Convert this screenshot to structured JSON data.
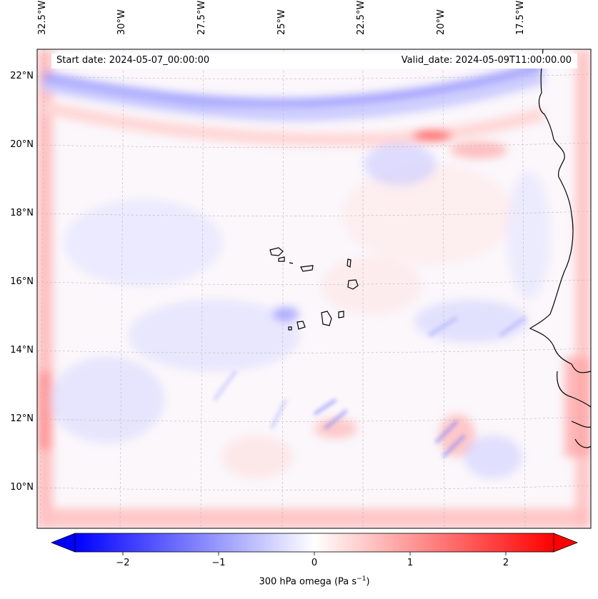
{
  "map": {
    "header_left": "Start date: 2024-05-07_00:00:00",
    "header_right": "Valid_date: 2024-05-09T11:00:00.00",
    "lon_labels": [
      "32.5°W",
      "30°W",
      "27.5°W",
      "25°W",
      "22.5°W",
      "20°W",
      "17.5°W"
    ],
    "lat_labels": [
      "22°N",
      "20°N",
      "18°N",
      "16°N",
      "14°N",
      "12°N",
      "10°N"
    ],
    "field": "300 hPa omega",
    "colors": {
      "negative": "#0000ff",
      "zero": "#ffffff",
      "positive": "#ff0000",
      "coast": "#000000"
    }
  },
  "colorbar": {
    "label": "300 hPa omega (Pa s$^{-1}$)",
    "label_base": "300 hPa omega (Pa s",
    "label_exp": "−1",
    "label_end": ")",
    "ticks": [
      "−2",
      "−1",
      "0",
      "1",
      "2"
    ],
    "range": [
      -2.7,
      2.7
    ],
    "tick_values": [
      -2,
      -1,
      0,
      1,
      2
    ]
  }
}
